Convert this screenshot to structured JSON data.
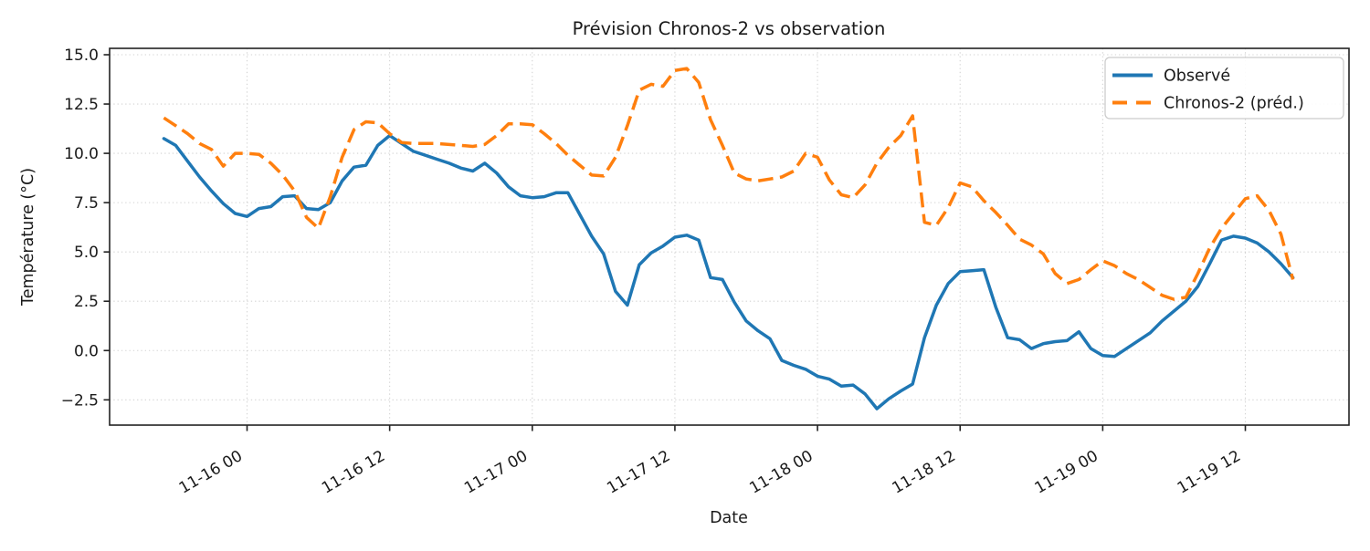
{
  "chart_data": {
    "type": "line",
    "title": "Prévision Chronos-2 vs observation",
    "xlabel": "Date",
    "ylabel": "Température (°C)",
    "grid": true,
    "grid_style": "dotted",
    "legend_position": "upper right",
    "x_axis": {
      "unit": "hours relative to 11-16 00:00",
      "start_hour": -7,
      "step_hours": 1,
      "tick_hours": [
        0,
        12,
        24,
        36,
        48,
        60,
        72,
        84
      ],
      "tick_labels": [
        "11-16 00",
        "11-16 12",
        "11-17 00",
        "11-17 12",
        "11-18 00",
        "11-18 12",
        "11-19 00",
        "11-19 12"
      ],
      "tick_rotation_deg": 30
    },
    "y_axis": {
      "tick_values": [
        15.0,
        12.5,
        10.0,
        7.5,
        5.0,
        2.5,
        0.0,
        -2.5
      ],
      "tick_labels": [
        "15.0",
        "12.5",
        "10.0",
        "7.5",
        "5.0",
        "2.5",
        "0.0",
        "−2.5"
      ],
      "ylim": [
        -3.8,
        15.33
      ]
    },
    "series": [
      {
        "name": "Observé",
        "color": "#1f77b4",
        "linestyle": "solid",
        "linewidth": 3.5,
        "values": [
          10.75,
          10.4,
          9.6,
          8.8,
          8.1,
          7.45,
          6.95,
          6.8,
          7.2,
          7.3,
          7.8,
          7.85,
          7.2,
          7.15,
          7.5,
          8.6,
          9.3,
          9.4,
          10.4,
          10.9,
          10.5,
          10.1,
          9.9,
          9.7,
          9.5,
          9.25,
          9.1,
          9.5,
          9.0,
          8.3,
          7.85,
          7.75,
          7.8,
          8.0,
          8.0,
          6.9,
          5.8,
          4.9,
          3.0,
          2.3,
          4.35,
          4.95,
          5.3,
          5.75,
          5.85,
          5.6,
          3.7,
          3.6,
          2.45,
          1.5,
          1.0,
          0.6,
          -0.5,
          -0.75,
          -0.95,
          -1.3,
          -1.45,
          -1.8,
          -1.75,
          -2.2,
          -2.95,
          -2.45,
          -2.05,
          -1.7,
          0.65,
          2.3,
          3.4,
          4.0,
          4.05,
          4.1,
          2.2,
          0.65,
          0.55,
          0.1,
          0.35,
          0.45,
          0.5,
          0.95,
          0.1,
          -0.25,
          -0.3,
          0.1,
          0.5,
          0.9,
          1.5,
          2.0,
          2.5,
          3.25,
          4.4,
          5.6,
          5.8,
          5.7,
          5.45,
          5.0,
          4.4,
          3.7
        ]
      },
      {
        "name": "Chronos-2 (préd.)",
        "color": "#ff7f0e",
        "linestyle": "dashed",
        "linewidth": 3.5,
        "values": [
          11.8,
          11.4,
          11.0,
          10.5,
          10.2,
          9.35,
          10.0,
          10.0,
          9.95,
          9.5,
          8.9,
          8.1,
          6.75,
          6.2,
          7.8,
          9.8,
          11.2,
          11.6,
          11.55,
          11.0,
          10.55,
          10.5,
          10.5,
          10.5,
          10.45,
          10.4,
          10.35,
          10.45,
          10.9,
          11.5,
          11.5,
          11.45,
          11.0,
          10.5,
          9.9,
          9.4,
          8.9,
          8.85,
          9.8,
          11.4,
          13.2,
          13.5,
          13.4,
          14.2,
          14.3,
          13.6,
          11.7,
          10.4,
          9.0,
          8.7,
          8.6,
          8.7,
          8.8,
          9.1,
          10.0,
          9.8,
          8.65,
          7.9,
          7.75,
          8.4,
          9.5,
          10.3,
          10.9,
          11.9,
          6.5,
          6.35,
          7.25,
          8.5,
          8.3,
          7.6,
          7.0,
          6.35,
          5.65,
          5.35,
          4.9,
          3.9,
          3.4,
          3.6,
          4.1,
          4.55,
          4.3,
          3.9,
          3.6,
          3.2,
          2.8,
          2.6,
          2.7,
          3.9,
          5.2,
          6.2,
          6.95,
          7.7,
          7.85,
          7.1,
          5.9,
          3.6
        ]
      }
    ]
  }
}
